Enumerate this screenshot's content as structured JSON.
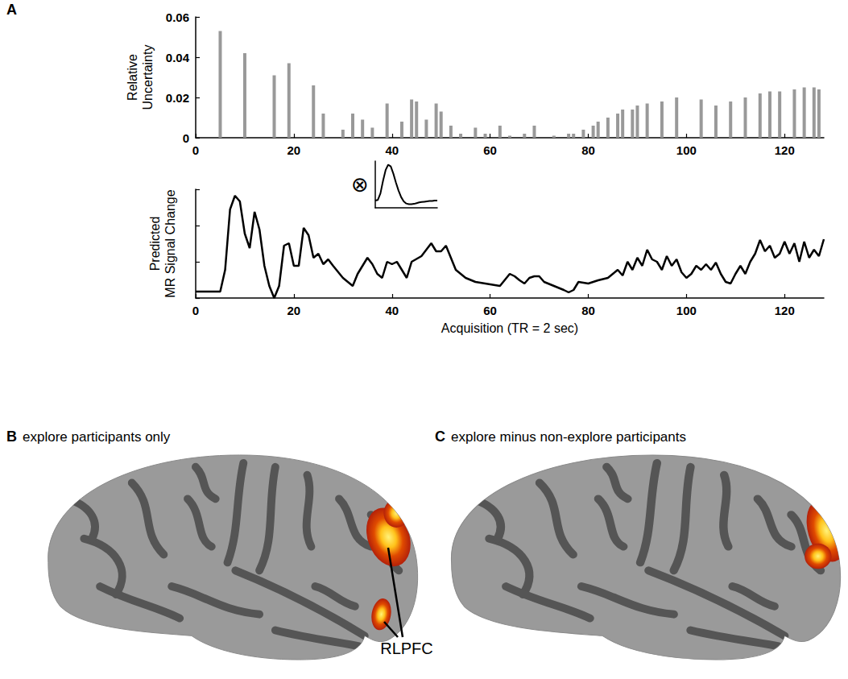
{
  "chart_data": [
    {
      "type": "bar",
      "x": [
        5,
        10,
        16,
        19,
        24,
        26,
        30,
        32,
        34,
        36,
        39,
        42,
        44,
        45,
        47,
        49,
        50,
        52,
        54,
        57,
        59,
        62,
        64,
        67,
        69,
        73,
        76,
        77,
        79,
        81,
        82,
        84,
        86,
        87,
        89,
        90,
        92,
        95,
        98,
        103,
        106,
        109,
        112,
        115,
        117,
        119,
        122,
        124,
        126,
        127
      ],
      "values": [
        0.053,
        0.042,
        0.031,
        0.037,
        0.026,
        0.012,
        0.004,
        0.012,
        0.009,
        0.005,
        0.017,
        0.008,
        0.019,
        0.018,
        0.009,
        0.017,
        0.013,
        0.006,
        0.002,
        0.005,
        0.002,
        0.006,
        0.001,
        0.002,
        0.006,
        0.001,
        0.002,
        0.002,
        0.004,
        0.006,
        0.008,
        0.01,
        0.012,
        0.014,
        0.014,
        0.016,
        0.017,
        0.018,
        0.02,
        0.019,
        0.016,
        0.018,
        0.02,
        0.022,
        0.023,
        0.023,
        0.024,
        0.025,
        0.025,
        0.024
      ],
      "color": "#999999",
      "xlim": [
        0,
        128
      ],
      "xticks": [
        0,
        20,
        40,
        60,
        80,
        100,
        120
      ],
      "ylim": [
        0,
        0.06
      ],
      "yticks": [
        0,
        0.02,
        0.04,
        0.06
      ],
      "y_label": "Relative Uncertainty",
      "grid": false
    },
    {
      "type": "line",
      "x": [
        0,
        1,
        2,
        3,
        4,
        5,
        6,
        7,
        8,
        9,
        10,
        11,
        12,
        13,
        14,
        15,
        16,
        17,
        18,
        19,
        20,
        21,
        22,
        23,
        24
      ],
      "values": [
        0,
        0.02,
        0.2,
        0.55,
        0.85,
        1.0,
        0.95,
        0.75,
        0.5,
        0.28,
        0.1,
        -0.02,
        -0.08,
        -0.1,
        -0.1,
        -0.09,
        -0.07,
        -0.05,
        -0.04,
        -0.03,
        -0.02,
        -0.01,
        -0.01,
        0,
        0
      ],
      "color": "#000000",
      "xlim": [
        0,
        24
      ],
      "ylim": [
        -0.2,
        1.1
      ],
      "tick_labels": false,
      "grid": false
    },
    {
      "type": "line",
      "x": [
        0,
        4,
        5,
        6,
        7,
        8,
        9,
        10,
        11,
        12,
        13,
        14,
        15,
        16,
        17,
        18,
        19,
        20,
        21,
        22,
        23,
        24,
        25,
        26,
        27,
        28,
        30,
        32,
        33,
        35,
        36,
        37,
        38,
        39,
        40,
        41,
        43,
        44,
        46,
        47,
        48,
        49,
        50,
        51,
        52,
        53,
        55,
        57,
        60,
        62,
        64,
        65,
        66,
        67,
        68,
        69,
        70,
        71,
        73,
        75,
        76,
        77,
        78,
        80,
        82,
        84,
        85,
        86,
        87,
        88,
        89,
        90,
        91,
        92,
        93,
        94,
        95,
        96,
        97,
        98,
        99,
        100,
        101,
        102,
        103,
        104,
        105,
        106,
        107,
        108,
        109,
        110,
        111,
        112,
        113,
        114,
        115,
        116,
        117,
        118,
        119,
        120,
        121,
        122,
        123,
        124,
        125,
        126,
        127,
        128
      ],
      "values": [
        8,
        8,
        8,
        35,
        110,
        127,
        120,
        80,
        62,
        107,
        85,
        40,
        15,
        0,
        15,
        65,
        68,
        40,
        40,
        87,
        78,
        50,
        55,
        42,
        48,
        40,
        25,
        15,
        30,
        50,
        42,
        30,
        25,
        45,
        42,
        45,
        25,
        45,
        52,
        60,
        68,
        58,
        58,
        65,
        50,
        35,
        25,
        20,
        17,
        15,
        30,
        27,
        22,
        18,
        25,
        27,
        27,
        20,
        15,
        10,
        7,
        10,
        20,
        18,
        22,
        25,
        30,
        35,
        28,
        45,
        35,
        50,
        40,
        60,
        48,
        45,
        35,
        52,
        40,
        48,
        32,
        25,
        30,
        40,
        35,
        42,
        35,
        44,
        30,
        20,
        18,
        30,
        40,
        30,
        45,
        55,
        72,
        58,
        65,
        50,
        55,
        70,
        55,
        68,
        45,
        70,
        50,
        60,
        52,
        73
      ],
      "color": "#000000",
      "xlim": [
        0,
        128
      ],
      "xticks": [
        0,
        20,
        40,
        60,
        80,
        100,
        120
      ],
      "ylim": [
        0,
        135
      ],
      "yticks": [
        0,
        45,
        90,
        135
      ],
      "x_label": "Acquisition (TR = 2 sec)",
      "y_label": "Predicted MR Signal Change",
      "tick_labels": "x",
      "grid": false
    }
  ],
  "figure": {
    "panel_letters": [
      "A",
      "B",
      "C"
    ],
    "operator": "⊗",
    "panels": [
      {
        "letter": "B",
        "title": "explore participants only"
      },
      {
        "letter": "C",
        "title": "explore minus non-explore participants"
      }
    ],
    "region_label": "RLPFC"
  }
}
